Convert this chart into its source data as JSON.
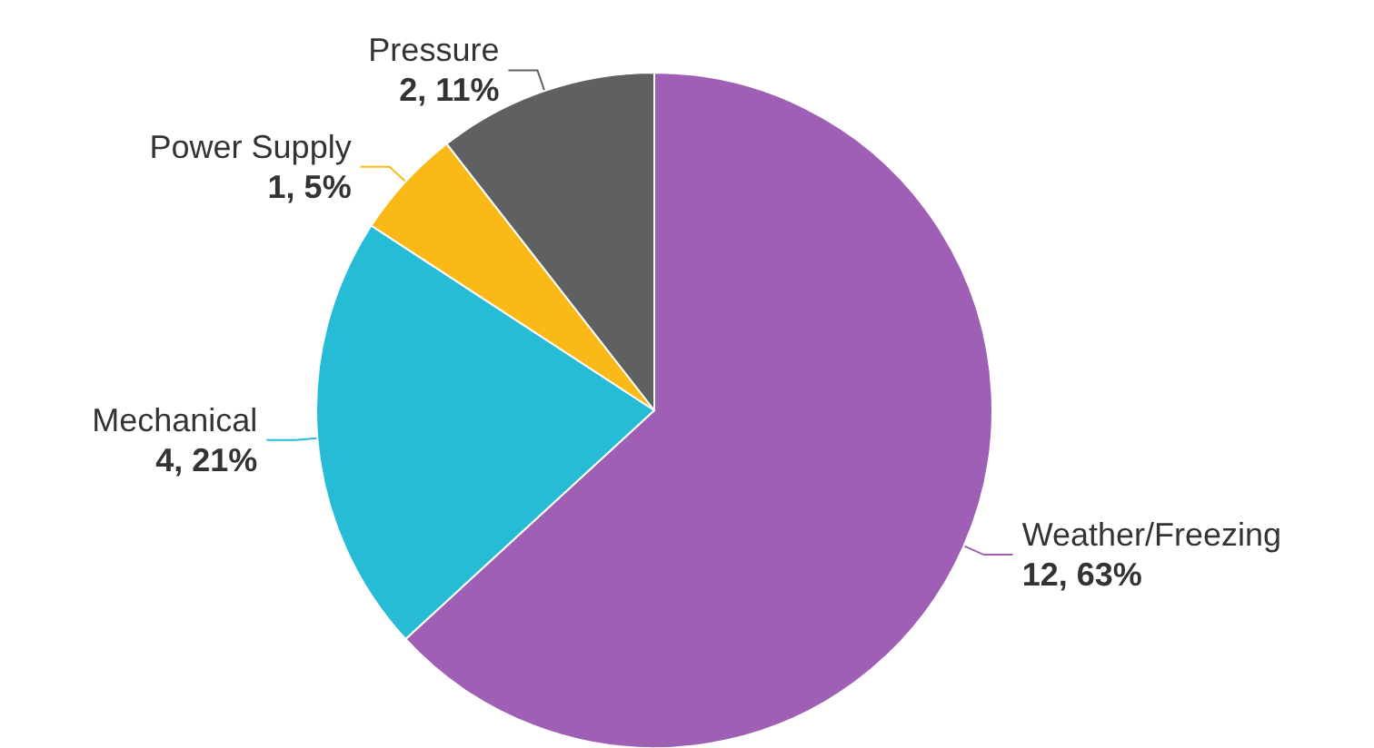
{
  "chart_data": {
    "type": "pie",
    "categories": [
      "Weather/Freezing",
      "Mechanical",
      "Power Supply",
      "Pressure"
    ],
    "values": [
      12,
      4,
      1,
      2
    ],
    "value_labels": [
      "12, 63%",
      "4, 21%",
      "1, 5%",
      "2, 11%"
    ],
    "colors": [
      "#9e5fb5",
      "#27bcd6",
      "#fbb917",
      "#5f6062"
    ]
  }
}
